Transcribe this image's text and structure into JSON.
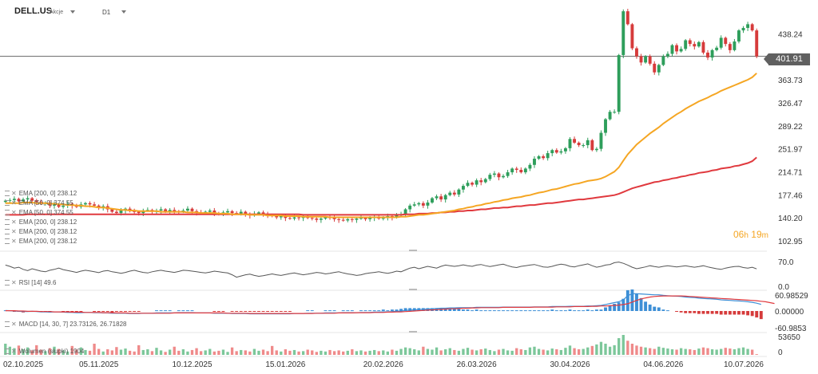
{
  "header": {
    "symbol": "DELL.US",
    "type": "Akcje",
    "timeframe": "D1"
  },
  "current_price": "401.91",
  "timer": {
    "hours": "06",
    "h": "h",
    "minutes": "19",
    "m": "m"
  },
  "indicators": {
    "overlay": [
      "EMA [200, 0] 238.12",
      "EMA [50, 0] 374.55",
      "EMA [50, 0] 374.55",
      "EMA [200, 0] 238.12",
      "EMA [200, 0] 238.12",
      "EMA [200, 0] 238.12"
    ],
    "rsi": "RSI [14] 49.6",
    "macd": "MACD [14, 30, 7] 23.73126, 26.71828",
    "volume": "Wolumen (słupki) 1904"
  },
  "colors": {
    "bull": "#2e9e5b",
    "bear": "#d63b3b",
    "ema50": "#f5a623",
    "ema200": "#e0393e",
    "macd": "#3d8fd6",
    "signal": "#e0393e",
    "rsi": "#555555"
  },
  "chart_data": {
    "type": "candlestick",
    "price_axis": {
      "ticks": [
        "438.24",
        "401.91",
        "363.73",
        "326.47",
        "289.22",
        "251.97",
        "214.71",
        "177.46",
        "140.20",
        "102.95"
      ]
    },
    "rsi_axis": {
      "ticks": [
        "70.0",
        "0.0"
      ]
    },
    "macd_axis": {
      "ticks": [
        "60.98529",
        "0.00000",
        "-60.9853"
      ]
    },
    "volume_axis": {
      "ticks": [
        "53650",
        "0"
      ]
    },
    "x_labels": [
      "02.10.2025",
      "05.11.2025",
      "10.12.2025",
      "15.01.2026",
      "20.02.2026",
      "26.03.2026",
      "30.04.2026",
      "04.06.2026",
      "10.07.2026"
    ],
    "price_range": [
      90,
      470
    ],
    "close": [
      168,
      169,
      171,
      167,
      170,
      172,
      168,
      166,
      163,
      165,
      160,
      162,
      158,
      160,
      163,
      160,
      158,
      162,
      164,
      162,
      160,
      156,
      159,
      154,
      150,
      148,
      152,
      155,
      151,
      150,
      148,
      152,
      153,
      150,
      152,
      154,
      150,
      153,
      151,
      150,
      152,
      155,
      151,
      149,
      148,
      150,
      152,
      148,
      146,
      149,
      151,
      148,
      147,
      150,
      146,
      144,
      147,
      149,
      146,
      145,
      143,
      141,
      143,
      140,
      139,
      141,
      140,
      142,
      140,
      139,
      137,
      139,
      141,
      140,
      138,
      137,
      136,
      138,
      137,
      139,
      140,
      138,
      140,
      142,
      139,
      140,
      143,
      141,
      145,
      146,
      154,
      160,
      162,
      164,
      160,
      165,
      172,
      175,
      170,
      177,
      181,
      178,
      186,
      192,
      197,
      194,
      201,
      198,
      203,
      210,
      212,
      206,
      208,
      214,
      220,
      218,
      214,
      220,
      226,
      236,
      240,
      237,
      245,
      250,
      246,
      248,
      253,
      268,
      262,
      258,
      258,
      266,
      250,
      252,
      278,
      300,
      312,
      312,
      404,
      475,
      454,
      415,
      402,
      392,
      402,
      390,
      376,
      388,
      402,
      406,
      420,
      410,
      414,
      428,
      422,
      418,
      425,
      408,
      400,
      412,
      416,
      432,
      422,
      412,
      426,
      444,
      448,
      454,
      444,
      401.91
    ],
    "ema50": [
      164,
      164,
      164,
      164,
      165,
      165,
      165,
      164,
      164,
      164,
      163,
      163,
      162,
      162,
      161,
      161,
      160,
      160,
      159,
      159,
      158,
      157,
      157,
      156,
      155,
      154,
      153,
      153,
      152,
      152,
      151,
      151,
      151,
      151,
      151,
      150,
      150,
      150,
      150,
      150,
      150,
      149,
      149,
      149,
      148,
      148,
      148,
      148,
      147,
      147,
      147,
      146,
      146,
      146,
      146,
      145,
      145,
      145,
      145,
      144,
      144,
      144,
      144,
      143,
      143,
      143,
      143,
      142,
      142,
      142,
      142,
      142,
      142,
      141,
      141,
      141,
      141,
      141,
      141,
      141,
      141,
      141,
      141,
      141,
      141,
      141,
      141,
      141,
      141,
      142,
      142,
      143,
      144,
      145,
      145,
      146,
      147,
      148,
      149,
      150,
      151,
      152,
      154,
      155,
      157,
      158,
      160,
      161,
      163,
      164,
      166,
      167,
      169,
      170,
      172,
      173,
      174,
      176,
      177,
      179,
      181,
      182,
      184,
      186,
      187,
      189,
      191,
      193,
      195,
      196,
      198,
      200,
      201,
      202,
      204,
      207,
      211,
      215,
      222,
      233,
      243,
      251,
      259,
      265,
      271,
      277,
      282,
      287,
      293,
      298,
      303,
      308,
      312,
      317,
      321,
      325,
      329,
      332,
      335,
      339,
      342,
      346,
      349,
      352,
      355,
      358,
      361,
      364,
      368,
      374.55
    ],
    "ema200": [
      145,
      145,
      145,
      145,
      145,
      146,
      146,
      146,
      146,
      146,
      146,
      146,
      146,
      146,
      146,
      146,
      146,
      146,
      146,
      146,
      146,
      146,
      146,
      146,
      146,
      146,
      146,
      146,
      146,
      146,
      146,
      146,
      146,
      146,
      146,
      146,
      146,
      146,
      146,
      146,
      146,
      146,
      146,
      146,
      146,
      146,
      146,
      146,
      146,
      146,
      146,
      146,
      146,
      146,
      146,
      146,
      146,
      146,
      146,
      146,
      146,
      146,
      146,
      146,
      146,
      146,
      146,
      145,
      145,
      145,
      145,
      145,
      145,
      145,
      145,
      145,
      145,
      145,
      145,
      145,
      145,
      145,
      145,
      145,
      145,
      145,
      145,
      145,
      145,
      145,
      146,
      146,
      146,
      147,
      147,
      147,
      148,
      148,
      149,
      149,
      150,
      150,
      151,
      151,
      152,
      152,
      153,
      154,
      154,
      155,
      156,
      156,
      157,
      157,
      158,
      159,
      159,
      160,
      161,
      161,
      162,
      163,
      164,
      164,
      165,
      166,
      167,
      168,
      169,
      170,
      170,
      171,
      172,
      173,
      174,
      175,
      176,
      177,
      179,
      182,
      185,
      188,
      190,
      192,
      194,
      196,
      198,
      199,
      201,
      202,
      204,
      205,
      207,
      208,
      210,
      211,
      213,
      214,
      215,
      217,
      218,
      220,
      221,
      222,
      224,
      225,
      227,
      229,
      232,
      238.12
    ],
    "rsi": [
      62,
      58,
      52,
      55,
      48,
      44,
      50,
      46,
      42,
      40,
      45,
      48,
      52,
      47,
      44,
      41,
      38,
      42,
      45,
      43,
      40,
      37,
      42,
      44,
      40,
      38,
      35,
      38,
      42,
      45,
      41,
      38,
      36,
      40,
      43,
      45,
      42,
      40,
      38,
      41,
      45,
      44,
      42,
      40,
      38,
      36,
      39,
      42,
      40,
      38,
      36,
      30,
      22,
      26,
      30,
      32,
      28,
      25,
      27,
      30,
      33,
      30,
      28,
      31,
      34,
      36,
      33,
      30,
      32,
      35,
      38,
      36,
      33,
      35,
      38,
      40,
      36,
      33,
      31,
      28,
      30,
      34,
      36,
      38,
      40,
      37,
      35,
      38,
      42,
      40,
      46,
      52,
      55,
      50,
      54,
      58,
      55,
      52,
      58,
      62,
      60,
      58,
      60,
      63,
      60,
      58,
      62,
      64,
      60,
      57,
      60,
      63,
      65,
      60,
      56,
      54,
      58,
      60,
      62,
      64,
      60,
      56,
      55,
      58,
      62,
      65,
      63,
      58,
      56,
      60,
      63,
      66,
      60,
      55,
      58,
      62,
      64,
      70,
      72,
      68,
      62,
      55,
      50,
      53,
      56,
      60,
      57,
      55,
      58,
      60,
      58,
      56,
      58,
      60,
      57,
      55,
      57,
      60,
      56,
      53,
      50,
      48,
      52,
      55,
      57,
      58,
      54,
      52,
      55,
      49.6
    ],
    "macd": [
      2,
      1,
      0,
      -1,
      -2,
      -2,
      -1,
      -2,
      -3,
      -3,
      -4,
      -3,
      -3,
      -4,
      -5,
      -5,
      -6,
      -6,
      -5,
      -5,
      -6,
      -6,
      -7,
      -7,
      -8,
      -8,
      -8,
      -8,
      -9,
      -9,
      -9,
      -8,
      -8,
      -8,
      -7,
      -7,
      -7,
      -7,
      -7,
      -6,
      -6,
      -6,
      -6,
      -7,
      -7,
      -7,
      -7,
      -8,
      -8,
      -8,
      -8,
      -9,
      -9,
      -9,
      -9,
      -10,
      -10,
      -10,
      -10,
      -10,
      -10,
      -10,
      -10,
      -10,
      -10,
      -9,
      -9,
      -9,
      -8,
      -8,
      -8,
      -8,
      -7,
      -7,
      -7,
      -7,
      -6,
      -6,
      -6,
      -6,
      -5,
      -5,
      -5,
      -4,
      -4,
      -3,
      -3,
      -2,
      -1,
      0,
      2,
      3,
      4,
      5,
      6,
      7,
      8,
      9,
      10,
      10,
      11,
      11,
      12,
      12,
      12,
      12,
      13,
      13,
      13,
      13,
      13,
      13,
      14,
      14,
      14,
      14,
      14,
      14,
      14,
      15,
      15,
      15,
      15,
      16,
      16,
      16,
      16,
      17,
      17,
      17,
      17,
      18,
      18,
      19,
      20,
      23,
      27,
      30,
      33,
      40,
      55,
      62,
      62,
      61,
      60,
      59,
      58,
      58,
      56,
      55,
      54,
      53,
      52,
      50,
      49,
      48,
      46,
      45,
      44,
      43,
      42,
      40,
      39,
      38,
      37,
      36,
      35,
      33,
      31,
      28,
      23.73126
    ],
    "signal": [
      1,
      1,
      1,
      0,
      0,
      -1,
      -1,
      -1,
      -2,
      -2,
      -2,
      -3,
      -3,
      -3,
      -3,
      -4,
      -4,
      -4,
      -5,
      -5,
      -5,
      -5,
      -6,
      -6,
      -6,
      -7,
      -7,
      -7,
      -8,
      -8,
      -8,
      -8,
      -8,
      -8,
      -8,
      -8,
      -8,
      -8,
      -7,
      -7,
      -7,
      -7,
      -7,
      -7,
      -7,
      -7,
      -7,
      -7,
      -7,
      -7,
      -8,
      -8,
      -8,
      -8,
      -8,
      -9,
      -9,
      -9,
      -9,
      -9,
      -9,
      -9,
      -9,
      -9,
      -9,
      -9,
      -9,
      -9,
      -9,
      -9,
      -8,
      -8,
      -8,
      -8,
      -8,
      -7,
      -7,
      -7,
      -7,
      -6,
      -6,
      -6,
      -6,
      -5,
      -5,
      -5,
      -4,
      -4,
      -3,
      -3,
      -2,
      -1,
      0,
      1,
      2,
      3,
      4,
      5,
      6,
      7,
      8,
      8,
      9,
      10,
      10,
      11,
      11,
      12,
      12,
      12,
      12,
      12,
      13,
      13,
      13,
      13,
      13,
      13,
      13,
      14,
      14,
      14,
      14,
      14,
      15,
      15,
      15,
      15,
      16,
      16,
      16,
      16,
      17,
      17,
      18,
      18,
      19,
      20,
      21,
      23,
      26,
      32,
      38,
      43,
      47,
      50,
      52,
      53,
      54,
      54,
      54,
      54,
      54,
      53,
      52,
      51,
      50,
      49,
      48,
      47,
      46,
      45,
      44,
      43,
      42,
      41,
      40,
      39,
      38,
      37,
      35,
      33,
      30,
      26.71828
    ],
    "volume": [
      30000,
      22000,
      18000,
      25000,
      15000,
      20000,
      12000,
      26000,
      14000,
      10000,
      18000,
      22000,
      16000,
      12000,
      9000,
      24000,
      14000,
      20000,
      13000,
      11000,
      30000,
      16000,
      9000,
      15000,
      12000,
      21000,
      14000,
      17000,
      11000,
      9000,
      26000,
      13000,
      15000,
      10000,
      19000,
      12000,
      8000,
      14000,
      22000,
      11000,
      15000,
      9000,
      13000,
      18000,
      10000,
      12000,
      16000,
      9000,
      11000,
      14000,
      8000,
      20000,
      10000,
      13000,
      12000,
      9000,
      16000,
      11000,
      14000,
      10000,
      24000,
      12000,
      9000,
      15000,
      11000,
      13000,
      9000,
      10000,
      14000,
      12000,
      8000,
      11000,
      9000,
      13000,
      10000,
      12000,
      9000,
      11000,
      15000,
      10000,
      12000,
      9000,
      11000,
      13000,
      10000,
      12000,
      9000,
      14000,
      11000,
      16000,
      20000,
      18000,
      15000,
      12000,
      22000,
      16000,
      14000,
      20000,
      12000,
      15000,
      18000,
      13000,
      11000,
      16000,
      19000,
      14000,
      12000,
      15000,
      17000,
      13000,
      10000,
      14000,
      16000,
      12000,
      11000,
      18000,
      15000,
      13000,
      20000,
      22000,
      16000,
      14000,
      12000,
      17000,
      15000,
      13000,
      19000,
      25000,
      18000,
      15000,
      16000,
      20000,
      24000,
      28000,
      35000,
      30000,
      22000,
      26000,
      45000,
      53650,
      38000,
      30000,
      25000,
      22000,
      20000,
      18000,
      16000,
      22000,
      19000,
      17000,
      15000,
      14000,
      18000,
      16000,
      15000,
      13000,
      17000,
      20000,
      18000,
      15000,
      14000,
      16000,
      19000,
      17000,
      15000,
      18000,
      20000,
      16000,
      14000,
      1904
    ]
  }
}
